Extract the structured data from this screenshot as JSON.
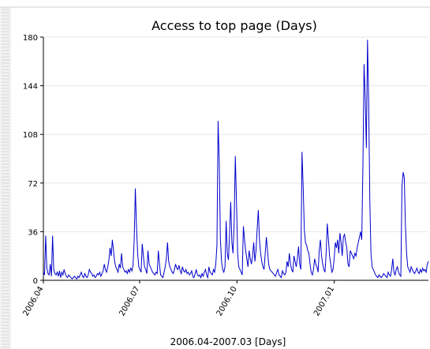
{
  "chart_data": {
    "type": "line",
    "title": "Access to top page (Days)",
    "xlabel": "2006.04-2007.03 [Days]",
    "ylabel": "",
    "ylim": [
      0,
      180
    ],
    "yticks": [
      0,
      36,
      72,
      108,
      144,
      180
    ],
    "x_start": "2006-04-01",
    "x_end": "2007-03-31",
    "xticks": [
      {
        "label": "2006.04",
        "date": "2006-04-01"
      },
      {
        "label": "2006.07",
        "date": "2006-07-01"
      },
      {
        "label": "2006.10",
        "date": "2006-10-01"
      },
      {
        "label": "2007.01",
        "date": "2007-01-01"
      }
    ],
    "grid": true,
    "series": [
      {
        "color": "#0000cc",
        "values": [
          6,
          4,
          33,
          9,
          5,
          4,
          12,
          3,
          33,
          8,
          5,
          4,
          6,
          3,
          7,
          2,
          6,
          4,
          8,
          5,
          3,
          2,
          4,
          3,
          2,
          1,
          2,
          3,
          2,
          1,
          3,
          2,
          4,
          6,
          3,
          2,
          5,
          3,
          2,
          4,
          8,
          6,
          5,
          3,
          4,
          2,
          3,
          5,
          4,
          6,
          3,
          5,
          7,
          12,
          8,
          6,
          10,
          15,
          24,
          18,
          30,
          22,
          14,
          10,
          8,
          6,
          12,
          9,
          20,
          10,
          8,
          6,
          7,
          5,
          8,
          6,
          9,
          7,
          11,
          30,
          68,
          40,
          20,
          10,
          8,
          6,
          27,
          18,
          10,
          8,
          5,
          22,
          12,
          10,
          8,
          6,
          5,
          4,
          6,
          5,
          22,
          12,
          4,
          3,
          2,
          6,
          10,
          16,
          28,
          14,
          10,
          8,
          6,
          5,
          8,
          12,
          9,
          8,
          11,
          7,
          5,
          10,
          7,
          6,
          8,
          5,
          6,
          4,
          5,
          7,
          3,
          2,
          5,
          8,
          4,
          3,
          4,
          2,
          5,
          3,
          6,
          8,
          4,
          2,
          10,
          6,
          5,
          4,
          8,
          6,
          12,
          26,
          118,
          88,
          30,
          14,
          8,
          6,
          10,
          44,
          20,
          15,
          35,
          58,
          28,
          20,
          44,
          92,
          58,
          20,
          10,
          8,
          6,
          4,
          40,
          30,
          22,
          16,
          10,
          22,
          16,
          12,
          18,
          28,
          14,
          22,
          38,
          52,
          30,
          20,
          14,
          10,
          8,
          20,
          32,
          22,
          12,
          8,
          7,
          6,
          5,
          4,
          3,
          6,
          8,
          4,
          3,
          2,
          7,
          5,
          4,
          6,
          14,
          10,
          20,
          12,
          8,
          6,
          18,
          14,
          10,
          16,
          25,
          12,
          8,
          95,
          70,
          38,
          28,
          26,
          22,
          20,
          12,
          6,
          4,
          8,
          16,
          12,
          10,
          6,
          22,
          30,
          18,
          12,
          8,
          6,
          20,
          42,
          30,
          18,
          12,
          6,
          8,
          16,
          28,
          24,
          30,
          20,
          35,
          28,
          18,
          32,
          34,
          28,
          24,
          12,
          10,
          22,
          20,
          18,
          16,
          20,
          18,
          24,
          28,
          32,
          36,
          30,
          84,
          160,
          135,
          98,
          178,
          132,
          60,
          20,
          10,
          8,
          6,
          4,
          3,
          2,
          4,
          3,
          2,
          3,
          5,
          4,
          3,
          2,
          6,
          4,
          3,
          8,
          16,
          6,
          4,
          8,
          10,
          6,
          4,
          3,
          70,
          80,
          76,
          40,
          20,
          10,
          8,
          6,
          10,
          8,
          6,
          5,
          7,
          9,
          6,
          5,
          8,
          6,
          9,
          7,
          8,
          6,
          12,
          14
        ]
      }
    ]
  }
}
